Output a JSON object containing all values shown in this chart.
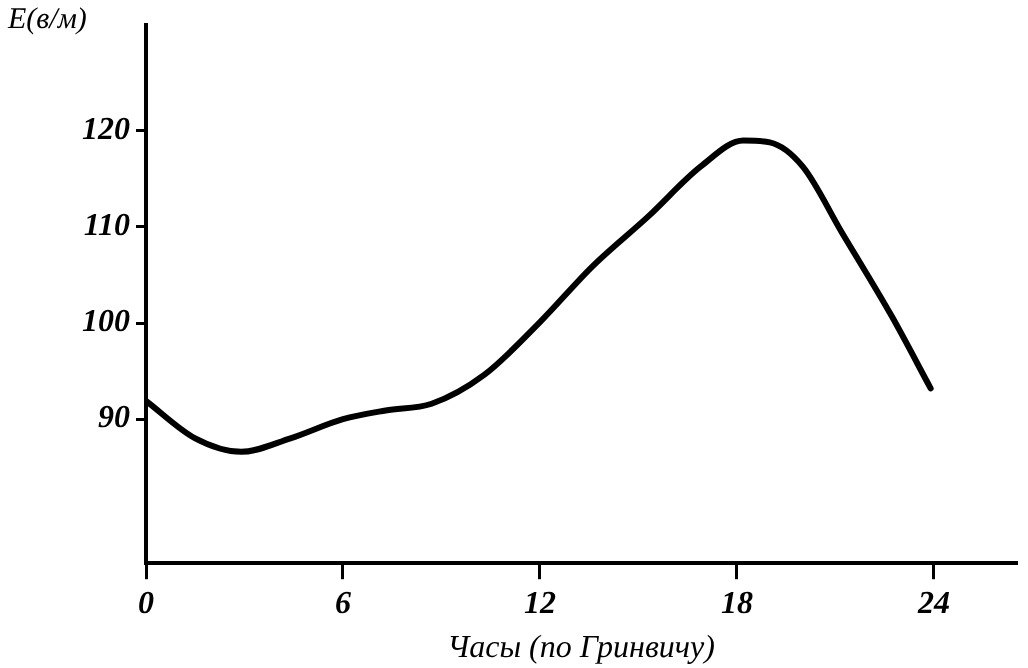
{
  "chart_data": {
    "type": "line",
    "xlabel": "Часы (по Гринвичу)",
    "ylabel": "E(в/м)",
    "x": [
      0,
      1.5,
      2.9,
      4.4,
      6,
      7.3,
      8.7,
      10.3,
      12,
      13.6,
      15.3,
      16.9,
      18.2,
      19,
      20,
      21.2,
      22.7,
      23.9
    ],
    "series": [
      {
        "color": "#000000",
        "values": [
          91.9,
          88,
          86.6,
          88,
          90,
          90.9,
          91.6,
          94.6,
          100.1,
          105.9,
          111.1,
          116.3,
          119,
          118.8,
          116.3,
          109.4,
          100.8,
          93.2
        ]
      }
    ],
    "xlim": [
      0,
      26.5
    ],
    "xticks": [
      0,
      6,
      12,
      18,
      24
    ],
    "ylim": [
      75,
      131
    ],
    "yticks": [
      90,
      100,
      110,
      120
    ],
    "grid": false,
    "legend": false,
    "marker": "none",
    "line_style": "solid"
  }
}
